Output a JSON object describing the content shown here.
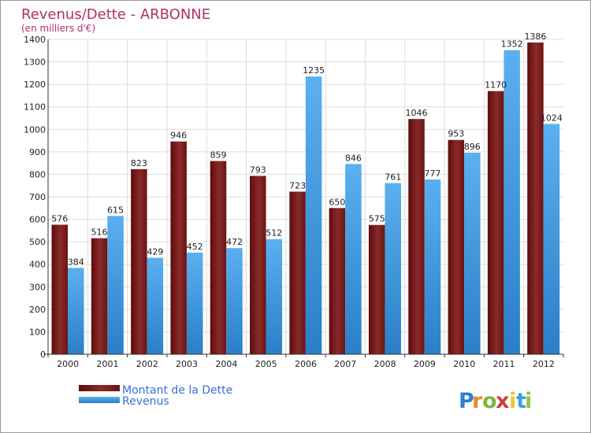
{
  "chart_data": {
    "type": "bar",
    "title": "Revenus/Dette - ARBONNE",
    "subtitle": "(en milliers d'€)",
    "categories": [
      "2000",
      "2001",
      "2002",
      "2003",
      "2004",
      "2005",
      "2006",
      "2007",
      "2008",
      "2009",
      "2010",
      "2011",
      "2012"
    ],
    "series": [
      {
        "name": "Montant de la Dette",
        "color": "#7a1a1a",
        "values": [
          576,
          516,
          823,
          946,
          859,
          793,
          723,
          650,
          575,
          1046,
          953,
          1170,
          1386
        ]
      },
      {
        "name": "Revenus",
        "color": "#3d9be6",
        "values": [
          384,
          615,
          429,
          452,
          472,
          512,
          1235,
          846,
          761,
          777,
          896,
          1352,
          1024
        ]
      }
    ],
    "ylim": [
      0,
      1400
    ],
    "yticks": [
      0,
      100,
      200,
      300,
      400,
      500,
      600,
      700,
      800,
      900,
      1000,
      1100,
      1200,
      1300,
      1400
    ],
    "grid": true,
    "legend_position": "bottom-left"
  },
  "logo": {
    "letters": [
      "P",
      "r",
      "o",
      "x",
      "i",
      "t",
      "i"
    ],
    "colors": [
      "#2f7fd0",
      "#e8892a",
      "#7cb640",
      "#d23a3a",
      "#e8c82a",
      "#3aa0d8",
      "#8cc63f"
    ]
  }
}
